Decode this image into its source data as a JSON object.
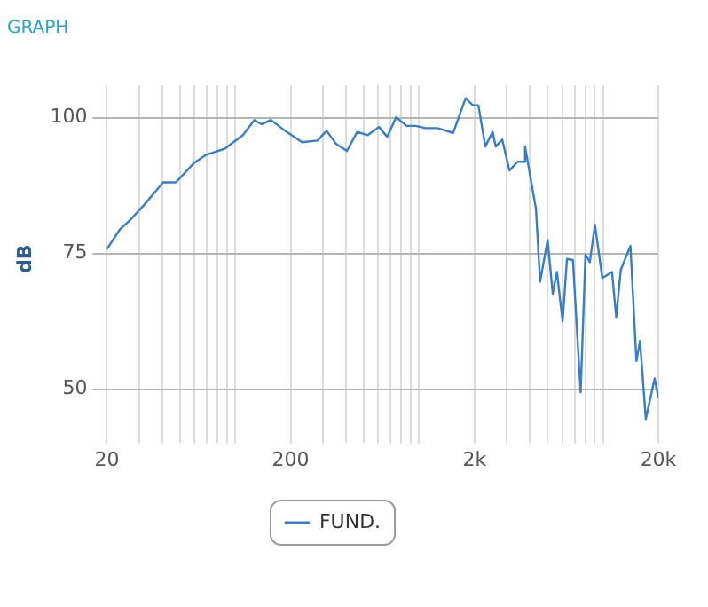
{
  "chart_data": {
    "type": "line",
    "title": "GRAPH",
    "ylabel": "dB",
    "x": [
      20,
      23.5,
      26.5,
      32,
      40.5,
      47.5,
      59.3,
      69.5,
      87.5,
      110,
      127,
      139,
      156,
      190,
      231,
      280,
      314,
      353,
      405,
      460,
      525,
      605,
      670,
      750,
      855,
      960,
      1080,
      1260,
      1530,
      1790,
      1960,
      2100,
      2290,
      2510,
      2610,
      2830,
      3100,
      3430,
      3710,
      3770,
      4320,
      4550,
      5000,
      5330,
      5620,
      6030,
      6370,
      6860,
      7560,
      8030,
      8480,
      9040,
      9920,
      11200,
      11800,
      12500,
      14100,
      15200,
      15900,
      17100,
      19100,
      20000
    ],
    "series": [
      {
        "name": "FUND.",
        "color": "#3a7dc0",
        "values": [
          75.8,
          79.4,
          81,
          84,
          88.1,
          88.1,
          91.6,
          93.2,
          94.3,
          96.8,
          99.6,
          98.8,
          99.6,
          97.4,
          95.5,
          95.8,
          97.6,
          95.2,
          93.9,
          97.4,
          96.8,
          98.3,
          96.5,
          100.1,
          98.5,
          98.5,
          98.1,
          98.1,
          97.2,
          103.6,
          102.3,
          102.3,
          94.7,
          97.4,
          94.7,
          96,
          90.3,
          91.9,
          91.9,
          94.7,
          83.2,
          69.8,
          77.5,
          67.6,
          71.6,
          62.5,
          74,
          73.8,
          49.4,
          74.8,
          73.4,
          80.3,
          70.5,
          71.6,
          63.3,
          72,
          76.4,
          55.2,
          58.9,
          44.5,
          52,
          48.4
        ]
      }
    ],
    "log": "x",
    "xlim": [
      20,
      20000
    ],
    "xticks": [
      20,
      {
        "value": 30,
        "label": null
      },
      {
        "value": 40,
        "label": null
      },
      {
        "value": 50,
        "label": null
      },
      {
        "value": 60,
        "label": null
      },
      {
        "value": 70,
        "label": null
      },
      {
        "value": 80,
        "label": null
      },
      {
        "value": 90,
        "label": null
      },
      {
        "value": 100,
        "label": null
      },
      200,
      {
        "value": 300,
        "label": null
      },
      {
        "value": 400,
        "label": null
      },
      {
        "value": 500,
        "label": null
      },
      {
        "value": 600,
        "label": null
      },
      {
        "value": 700,
        "label": null
      },
      {
        "value": 800,
        "label": null
      },
      {
        "value": 900,
        "label": null
      },
      {
        "value": 1000,
        "label": null
      },
      {
        "value": 2000,
        "label": "2k"
      },
      {
        "value": 3000,
        "label": null
      },
      {
        "value": 4000,
        "label": null
      },
      {
        "value": 5000,
        "label": null
      },
      {
        "value": 6000,
        "label": null
      },
      {
        "value": 7000,
        "label": null
      },
      {
        "value": 8000,
        "label": null
      },
      {
        "value": 9000,
        "label": null
      },
      {
        "value": 10000,
        "label": null
      },
      {
        "value": 20000,
        "label": "20k"
      }
    ],
    "ylim": [
      42,
      106
    ],
    "yticks": [
      50,
      75,
      100
    ],
    "grid": true,
    "legend": "bottom",
    "marker": "none",
    "line_style": "solid"
  }
}
